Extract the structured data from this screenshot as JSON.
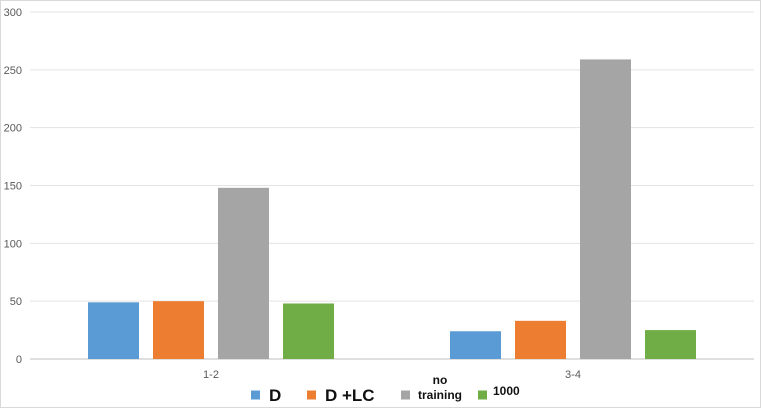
{
  "chart_data": {
    "type": "bar",
    "categories": [
      "1-2",
      "3-4"
    ],
    "series": [
      {
        "name": "D",
        "values": [
          49,
          24
        ],
        "color": "#5B9BD5"
      },
      {
        "name": "D +LC",
        "values": [
          50,
          33
        ],
        "color": "#ED7D31"
      },
      {
        "name": "no training",
        "values": [
          148,
          259
        ],
        "color": "#A5A5A5"
      },
      {
        "name": "1000",
        "values": [
          48,
          25
        ],
        "color": "#70AD47"
      }
    ],
    "y_ticks": [
      0,
      50,
      100,
      150,
      200,
      250,
      300
    ],
    "ylim": [
      0,
      300
    ],
    "title": "",
    "xlabel": "",
    "ylabel": "",
    "grid": true,
    "legend_position": "bottom"
  }
}
